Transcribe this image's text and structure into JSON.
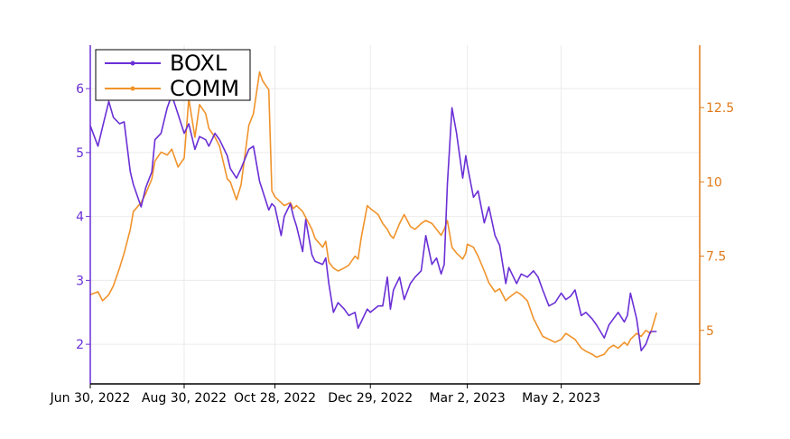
{
  "chart_data": {
    "type": "line",
    "title": "",
    "xlabel": "",
    "ylabel_left": "",
    "ylabel_right": "",
    "x_range": [
      "2022-06-30",
      "2023-07-31"
    ],
    "x_ticks": [
      {
        "date": "2022-06-30",
        "label": "Jun 30, 2022"
      },
      {
        "date": "2022-08-30",
        "label": "Aug 30, 2022"
      },
      {
        "date": "2022-10-28",
        "label": "Oct 28, 2022"
      },
      {
        "date": "2022-12-29",
        "label": "Dec 29, 2022"
      },
      {
        "date": "2023-03-02",
        "label": "Mar 2, 2023"
      },
      {
        "date": "2023-05-02",
        "label": "May 2, 2023"
      }
    ],
    "y_left": {
      "range": [
        1.38,
        6.68
      ],
      "ticks": [
        2,
        3,
        4,
        5,
        6
      ],
      "tick_labels": [
        "2",
        "3",
        "4",
        "5",
        "6"
      ],
      "color": "#6a2fd6"
    },
    "y_right": {
      "range": [
        3.2,
        14.6
      ],
      "ticks": [
        5,
        7.5,
        10,
        12.5
      ],
      "tick_labels": [
        "5",
        "7.5",
        "10",
        "12.5"
      ],
      "color": "#e07b1a"
    },
    "grid": true,
    "legend": {
      "placement": "top-left"
    },
    "series": [
      {
        "name": "BOXL",
        "axis": "left",
        "color": "#6a2fd6",
        "points": [
          [
            "2022-06-30",
            5.42
          ],
          [
            "2022-07-05",
            5.1
          ],
          [
            "2022-07-08",
            5.4
          ],
          [
            "2022-07-12",
            5.8
          ],
          [
            "2022-07-15",
            5.55
          ],
          [
            "2022-07-19",
            5.45
          ],
          [
            "2022-07-22",
            5.48
          ],
          [
            "2022-07-26",
            4.7
          ],
          [
            "2022-07-28",
            4.5
          ],
          [
            "2022-08-02",
            4.15
          ],
          [
            "2022-08-05",
            4.45
          ],
          [
            "2022-08-09",
            4.7
          ],
          [
            "2022-08-11",
            5.2
          ],
          [
            "2022-08-15",
            5.3
          ],
          [
            "2022-08-19",
            5.7
          ],
          [
            "2022-08-22",
            5.9
          ],
          [
            "2022-08-26",
            5.6
          ],
          [
            "2022-08-30",
            5.3
          ],
          [
            "2022-09-02",
            5.45
          ],
          [
            "2022-09-06",
            5.05
          ],
          [
            "2022-09-09",
            5.25
          ],
          [
            "2022-09-13",
            5.2
          ],
          [
            "2022-09-15",
            5.1
          ],
          [
            "2022-09-19",
            5.3
          ],
          [
            "2022-09-22",
            5.2
          ],
          [
            "2022-09-27",
            4.95
          ],
          [
            "2022-09-29",
            4.75
          ],
          [
            "2022-10-03",
            4.6
          ],
          [
            "2022-10-06",
            4.75
          ],
          [
            "2022-10-11",
            5.05
          ],
          [
            "2022-10-14",
            5.1
          ],
          [
            "2022-10-18",
            4.55
          ],
          [
            "2022-10-20",
            4.4
          ],
          [
            "2022-10-24",
            4.1
          ],
          [
            "2022-10-26",
            4.2
          ],
          [
            "2022-10-28",
            4.15
          ],
          [
            "2022-11-01",
            3.7
          ],
          [
            "2022-11-03",
            4.0
          ],
          [
            "2022-11-07",
            4.2
          ],
          [
            "2022-11-09",
            4.0
          ],
          [
            "2022-11-11",
            3.85
          ],
          [
            "2022-11-15",
            3.45
          ],
          [
            "2022-11-17",
            3.95
          ],
          [
            "2022-11-21",
            3.4
          ],
          [
            "2022-11-23",
            3.3
          ],
          [
            "2022-11-28",
            3.25
          ],
          [
            "2022-11-30",
            3.35
          ],
          [
            "2022-12-02",
            2.95
          ],
          [
            "2022-12-05",
            2.5
          ],
          [
            "2022-12-08",
            2.65
          ],
          [
            "2022-12-12",
            2.55
          ],
          [
            "2022-12-15",
            2.45
          ],
          [
            "2022-12-19",
            2.5
          ],
          [
            "2022-12-21",
            2.25
          ],
          [
            "2022-12-23",
            2.35
          ],
          [
            "2022-12-27",
            2.55
          ],
          [
            "2022-12-29",
            2.5
          ],
          [
            "2023-01-03",
            2.6
          ],
          [
            "2023-01-06",
            2.6
          ],
          [
            "2023-01-09",
            3.05
          ],
          [
            "2023-01-11",
            2.55
          ],
          [
            "2023-01-13",
            2.85
          ],
          [
            "2023-01-17",
            3.05
          ],
          [
            "2023-01-20",
            2.7
          ],
          [
            "2023-01-24",
            2.95
          ],
          [
            "2023-01-27",
            3.05
          ],
          [
            "2023-01-31",
            3.15
          ],
          [
            "2023-02-03",
            3.7
          ],
          [
            "2023-02-07",
            3.25
          ],
          [
            "2023-02-10",
            3.35
          ],
          [
            "2023-02-13",
            3.1
          ],
          [
            "2023-02-15",
            3.25
          ],
          [
            "2023-02-17",
            4.5
          ],
          [
            "2023-02-20",
            5.7
          ],
          [
            "2023-02-23",
            5.3
          ],
          [
            "2023-02-27",
            4.6
          ],
          [
            "2023-03-01",
            4.95
          ],
          [
            "2023-03-02",
            4.8
          ],
          [
            "2023-03-06",
            4.3
          ],
          [
            "2023-03-09",
            4.4
          ],
          [
            "2023-03-13",
            3.9
          ],
          [
            "2023-03-16",
            4.15
          ],
          [
            "2023-03-20",
            3.7
          ],
          [
            "2023-03-23",
            3.55
          ],
          [
            "2023-03-27",
            2.95
          ],
          [
            "2023-03-29",
            3.2
          ],
          [
            "2023-04-03",
            2.95
          ],
          [
            "2023-04-06",
            3.1
          ],
          [
            "2023-04-10",
            3.05
          ],
          [
            "2023-04-12",
            3.1
          ],
          [
            "2023-04-14",
            3.15
          ],
          [
            "2023-04-17",
            3.05
          ],
          [
            "2023-04-20",
            2.85
          ],
          [
            "2023-04-24",
            2.6
          ],
          [
            "2023-04-28",
            2.65
          ],
          [
            "2023-05-02",
            2.8
          ],
          [
            "2023-05-05",
            2.7
          ],
          [
            "2023-05-08",
            2.75
          ],
          [
            "2023-05-11",
            2.85
          ],
          [
            "2023-05-15",
            2.45
          ],
          [
            "2023-05-18",
            2.5
          ],
          [
            "2023-05-22",
            2.4
          ],
          [
            "2023-05-25",
            2.3
          ],
          [
            "2023-05-30",
            2.1
          ],
          [
            "2023-06-02",
            2.3
          ],
          [
            "2023-06-05",
            2.4
          ],
          [
            "2023-06-08",
            2.5
          ],
          [
            "2023-06-12",
            2.35
          ],
          [
            "2023-06-14",
            2.45
          ],
          [
            "2023-06-16",
            2.8
          ],
          [
            "2023-06-20",
            2.4
          ],
          [
            "2023-06-23",
            1.9
          ],
          [
            "2023-06-26",
            2.0
          ],
          [
            "2023-06-29",
            2.2
          ],
          [
            "2023-07-03",
            2.2
          ]
        ]
      },
      {
        "name": "COMM",
        "axis": "right",
        "color": "#f0932b",
        "points": [
          [
            "2022-06-30",
            6.2
          ],
          [
            "2022-07-05",
            6.3
          ],
          [
            "2022-07-08",
            6.0
          ],
          [
            "2022-07-12",
            6.2
          ],
          [
            "2022-07-15",
            6.5
          ],
          [
            "2022-07-19",
            7.1
          ],
          [
            "2022-07-22",
            7.6
          ],
          [
            "2022-07-26",
            8.4
          ],
          [
            "2022-07-28",
            9.0
          ],
          [
            "2022-08-02",
            9.3
          ],
          [
            "2022-08-05",
            9.6
          ],
          [
            "2022-08-09",
            10.1
          ],
          [
            "2022-08-11",
            10.7
          ],
          [
            "2022-08-15",
            11.0
          ],
          [
            "2022-08-19",
            10.9
          ],
          [
            "2022-08-22",
            11.1
          ],
          [
            "2022-08-26",
            10.5
          ],
          [
            "2022-08-30",
            10.8
          ],
          [
            "2022-09-02",
            12.8
          ],
          [
            "2022-09-06",
            11.5
          ],
          [
            "2022-09-09",
            12.6
          ],
          [
            "2022-09-13",
            12.3
          ],
          [
            "2022-09-15",
            11.8
          ],
          [
            "2022-09-19",
            11.5
          ],
          [
            "2022-09-22",
            11.2
          ],
          [
            "2022-09-27",
            10.1
          ],
          [
            "2022-09-29",
            10.0
          ],
          [
            "2022-10-03",
            9.4
          ],
          [
            "2022-10-06",
            9.9
          ],
          [
            "2022-10-11",
            11.9
          ],
          [
            "2022-10-14",
            12.3
          ],
          [
            "2022-10-18",
            13.7
          ],
          [
            "2022-10-20",
            13.4
          ],
          [
            "2022-10-24",
            13.1
          ],
          [
            "2022-10-26",
            9.7
          ],
          [
            "2022-10-28",
            9.5
          ],
          [
            "2022-11-01",
            9.3
          ],
          [
            "2022-11-03",
            9.2
          ],
          [
            "2022-11-07",
            9.3
          ],
          [
            "2022-11-09",
            9.1
          ],
          [
            "2022-11-11",
            9.2
          ],
          [
            "2022-11-15",
            9.0
          ],
          [
            "2022-11-17",
            8.8
          ],
          [
            "2022-11-21",
            8.4
          ],
          [
            "2022-11-23",
            8.1
          ],
          [
            "2022-11-28",
            7.8
          ],
          [
            "2022-11-30",
            8.0
          ],
          [
            "2022-12-02",
            7.3
          ],
          [
            "2022-12-05",
            7.1
          ],
          [
            "2022-12-08",
            7.0
          ],
          [
            "2022-12-12",
            7.1
          ],
          [
            "2022-12-15",
            7.2
          ],
          [
            "2022-12-19",
            7.5
          ],
          [
            "2022-12-21",
            7.4
          ],
          [
            "2022-12-23",
            8.1
          ],
          [
            "2022-12-27",
            9.2
          ],
          [
            "2022-12-29",
            9.1
          ],
          [
            "2023-01-03",
            8.9
          ],
          [
            "2023-01-06",
            8.6
          ],
          [
            "2023-01-09",
            8.4
          ],
          [
            "2023-01-11",
            8.2
          ],
          [
            "2023-01-13",
            8.1
          ],
          [
            "2023-01-17",
            8.6
          ],
          [
            "2023-01-20",
            8.9
          ],
          [
            "2023-01-24",
            8.5
          ],
          [
            "2023-01-27",
            8.4
          ],
          [
            "2023-01-31",
            8.6
          ],
          [
            "2023-02-03",
            8.7
          ],
          [
            "2023-02-07",
            8.6
          ],
          [
            "2023-02-10",
            8.4
          ],
          [
            "2023-02-13",
            8.2
          ],
          [
            "2023-02-15",
            8.4
          ],
          [
            "2023-02-17",
            8.7
          ],
          [
            "2023-02-20",
            7.8
          ],
          [
            "2023-02-23",
            7.6
          ],
          [
            "2023-02-27",
            7.4
          ],
          [
            "2023-03-01",
            7.6
          ],
          [
            "2023-03-02",
            7.9
          ],
          [
            "2023-03-06",
            7.8
          ],
          [
            "2023-03-09",
            7.5
          ],
          [
            "2023-03-13",
            7.0
          ],
          [
            "2023-03-16",
            6.6
          ],
          [
            "2023-03-20",
            6.3
          ],
          [
            "2023-03-23",
            6.4
          ],
          [
            "2023-03-27",
            6.0
          ],
          [
            "2023-03-29",
            6.1
          ],
          [
            "2023-04-03",
            6.3
          ],
          [
            "2023-04-06",
            6.2
          ],
          [
            "2023-04-10",
            6.0
          ],
          [
            "2023-04-12",
            5.7
          ],
          [
            "2023-04-14",
            5.4
          ],
          [
            "2023-04-17",
            5.1
          ],
          [
            "2023-04-20",
            4.8
          ],
          [
            "2023-04-24",
            4.7
          ],
          [
            "2023-04-28",
            4.6
          ],
          [
            "2023-05-02",
            4.7
          ],
          [
            "2023-05-05",
            4.9
          ],
          [
            "2023-05-08",
            4.8
          ],
          [
            "2023-05-11",
            4.7
          ],
          [
            "2023-05-15",
            4.4
          ],
          [
            "2023-05-18",
            4.3
          ],
          [
            "2023-05-22",
            4.2
          ],
          [
            "2023-05-25",
            4.1
          ],
          [
            "2023-05-30",
            4.2
          ],
          [
            "2023-06-02",
            4.4
          ],
          [
            "2023-06-05",
            4.5
          ],
          [
            "2023-06-08",
            4.4
          ],
          [
            "2023-06-12",
            4.6
          ],
          [
            "2023-06-14",
            4.5
          ],
          [
            "2023-06-16",
            4.7
          ],
          [
            "2023-06-20",
            4.9
          ],
          [
            "2023-06-23",
            4.8
          ],
          [
            "2023-06-26",
            5.0
          ],
          [
            "2023-06-29",
            4.9
          ],
          [
            "2023-07-03",
            5.6
          ]
        ]
      }
    ]
  }
}
